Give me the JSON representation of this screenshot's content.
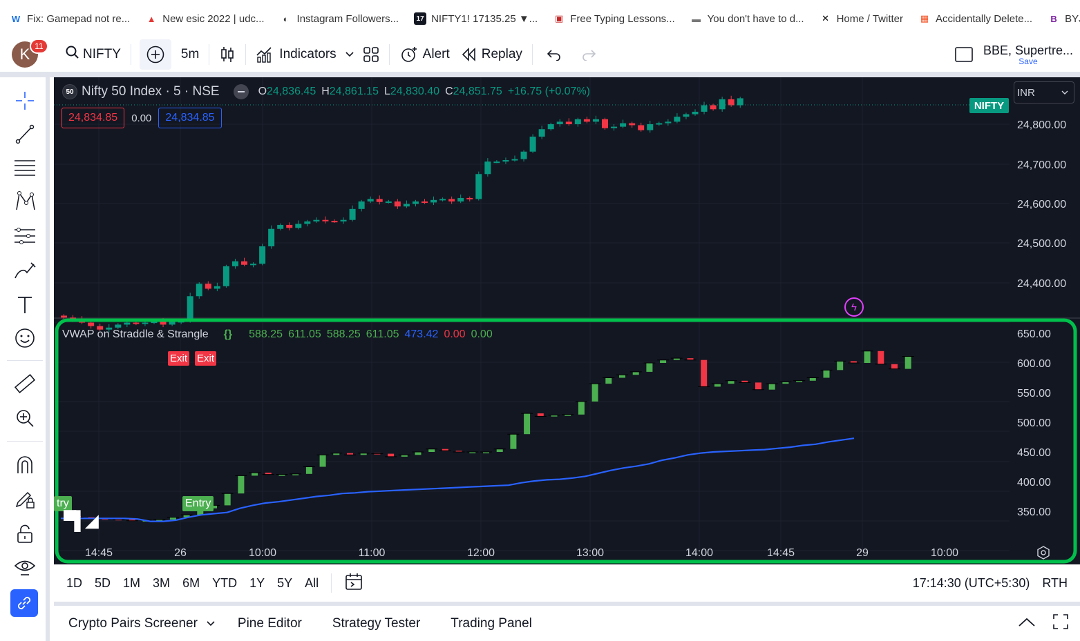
{
  "bookmarks": [
    {
      "icon": "w-icon",
      "label": "Fix: Gamepad not re...",
      "color": "#1a73e8",
      "glyph": "W"
    },
    {
      "icon": "arrow-logo-icon",
      "label": "New esic 2022 | udc...",
      "color": "#e53935",
      "glyph": "▲"
    },
    {
      "icon": "globe-icon",
      "label": "Instagram Followers...",
      "color": "#333",
      "glyph": "◐"
    },
    {
      "icon": "tv-icon",
      "label": "NIFTY1! 17135.25 ▼...",
      "color": "#131722",
      "glyph": "17"
    },
    {
      "icon": "typing-icon",
      "label": "Free Typing Lessons...",
      "color": "#c62828",
      "glyph": "▣"
    },
    {
      "icon": "dash-icon",
      "label": "You don't have to d...",
      "color": "#777",
      "glyph": "▬"
    },
    {
      "icon": "x-icon",
      "label": "Home / Twitter",
      "color": "#000",
      "glyph": "✕"
    },
    {
      "icon": "windows-icon",
      "label": "Accidentally Delete...",
      "color": "#f25022",
      "glyph": "▦"
    },
    {
      "icon": "byjus-icon",
      "label": "BYJU's",
      "color": "#7b1fa2",
      "glyph": "B"
    }
  ],
  "toolbar": {
    "avatar_letter": "K",
    "notif_count": "11",
    "symbol": "NIFTY",
    "interval": "5m",
    "indicators": "Indicators",
    "alert": "Alert",
    "replay": "Replay",
    "layout_name": "BBE, Supertre...",
    "save": "Save"
  },
  "legend": {
    "exchange_badge": "50",
    "title": "Nifty 50 Index · 5 · NSE",
    "o_label": "O",
    "o": "24,836.45",
    "h_label": "H",
    "h": "24,861.15",
    "l_label": "L",
    "l": "24,830.40",
    "c_label": "C",
    "c": "24,851.75",
    "chg": "+16.75 (+0.07%)",
    "sell": "24,834.85",
    "spread": "0.00",
    "buy": "24,834.85"
  },
  "currency": "INR",
  "price_tag": "NIFTY",
  "indicator": {
    "name": "VWAP on Straddle & Strangle",
    "braces": "{}",
    "values": [
      {
        "v": "588.25",
        "color": "#4caf50"
      },
      {
        "v": "611.05",
        "color": "#4caf50"
      },
      {
        "v": "588.25",
        "color": "#4caf50"
      },
      {
        "v": "611.05",
        "color": "#4caf50"
      },
      {
        "v": "473.42",
        "color": "#2962ff"
      },
      {
        "v": "0.00",
        "color": "#f23645"
      },
      {
        "v": "0.00",
        "color": "#4caf50"
      }
    ],
    "exit": "Exit",
    "entry": "Entry",
    "entry_cut": "try"
  },
  "axis": {
    "main": [
      "24,800.00",
      "24,700.00",
      "24,600.00",
      "24,500.00",
      "24,400.00"
    ],
    "sub": [
      "650.00",
      "600.00",
      "550.00",
      "500.00",
      "450.00",
      "400.00",
      "350.00"
    ],
    "time": [
      "14:45",
      "26",
      "10:00",
      "11:00",
      "12:00",
      "13:00",
      "14:00",
      "14:45",
      "29",
      "10:00"
    ]
  },
  "ranges": [
    "1D",
    "5D",
    "1M",
    "3M",
    "6M",
    "YTD",
    "1Y",
    "5Y",
    "All"
  ],
  "clock": "17:14:30 (UTC+5:30)",
  "session": "RTH",
  "panels": [
    "Crypto Pairs Screener",
    "Pine Editor",
    "Strategy Tester",
    "Trading Panel"
  ],
  "colors": {
    "up": "#089981",
    "down": "#f23645",
    "sub_up": "#4caf50",
    "vwap": "#2962ff",
    "highlight": "#00c04b",
    "bg": "#131722"
  },
  "chart_data": {
    "type": "candlestick",
    "main_ohlc_last": {
      "o": 24836.45,
      "h": 24861.15,
      "l": 24830.4,
      "c": 24851.75
    },
    "main_close": [
      24412,
      24408,
      24402,
      24395,
      24388,
      24392,
      24398,
      24402,
      24400,
      24402,
      24404,
      24398,
      24404,
      24405,
      24455,
      24480,
      24470,
      24475,
      24515,
      24525,
      24518,
      24520,
      24555,
      24590,
      24598,
      24592,
      24600,
      24605,
      24608,
      24606,
      24605,
      24608,
      24630,
      24645,
      24650,
      24644,
      24645,
      24635,
      24640,
      24645,
      24643,
      24648,
      24650,
      24645,
      24652,
      24650,
      24700,
      24725,
      24725,
      24728,
      24730,
      24745,
      24775,
      24790,
      24800,
      24805,
      24800,
      24810,
      24805,
      24810,
      24792,
      24795,
      24802,
      24798,
      24788,
      24800,
      24802,
      24805,
      24815,
      24820,
      24825,
      24838,
      24830,
      24850,
      24838,
      24852
    ],
    "sub_close": [
      340,
      338,
      337,
      336,
      334,
      335,
      336,
      340,
      344,
      355,
      360,
      380,
      410,
      415,
      412,
      412,
      413,
      425,
      445,
      448,
      445,
      448,
      447,
      442,
      445,
      450,
      455,
      452,
      450,
      450,
      450,
      455,
      480,
      515,
      510,
      512,
      513,
      535,
      565,
      575,
      580,
      585,
      600,
      605,
      608,
      605,
      560,
      565,
      570,
      567,
      555,
      565,
      568,
      570,
      575,
      588,
      603,
      600,
      620,
      598,
      590,
      611
    ],
    "vwap": [
      338,
      338,
      338,
      338,
      338,
      338,
      337,
      333,
      333,
      335,
      340,
      344,
      346,
      348,
      355,
      360,
      364,
      366,
      369,
      372,
      375,
      377,
      380,
      381,
      383,
      384,
      385,
      386,
      387,
      388,
      389,
      390,
      391,
      392,
      393,
      394,
      398,
      401,
      403,
      404,
      406,
      409,
      414,
      419,
      423,
      426,
      430,
      436,
      440,
      445,
      448,
      450,
      451,
      452,
      453,
      454,
      456,
      458,
      461,
      463,
      467,
      470,
      473
    ]
  }
}
